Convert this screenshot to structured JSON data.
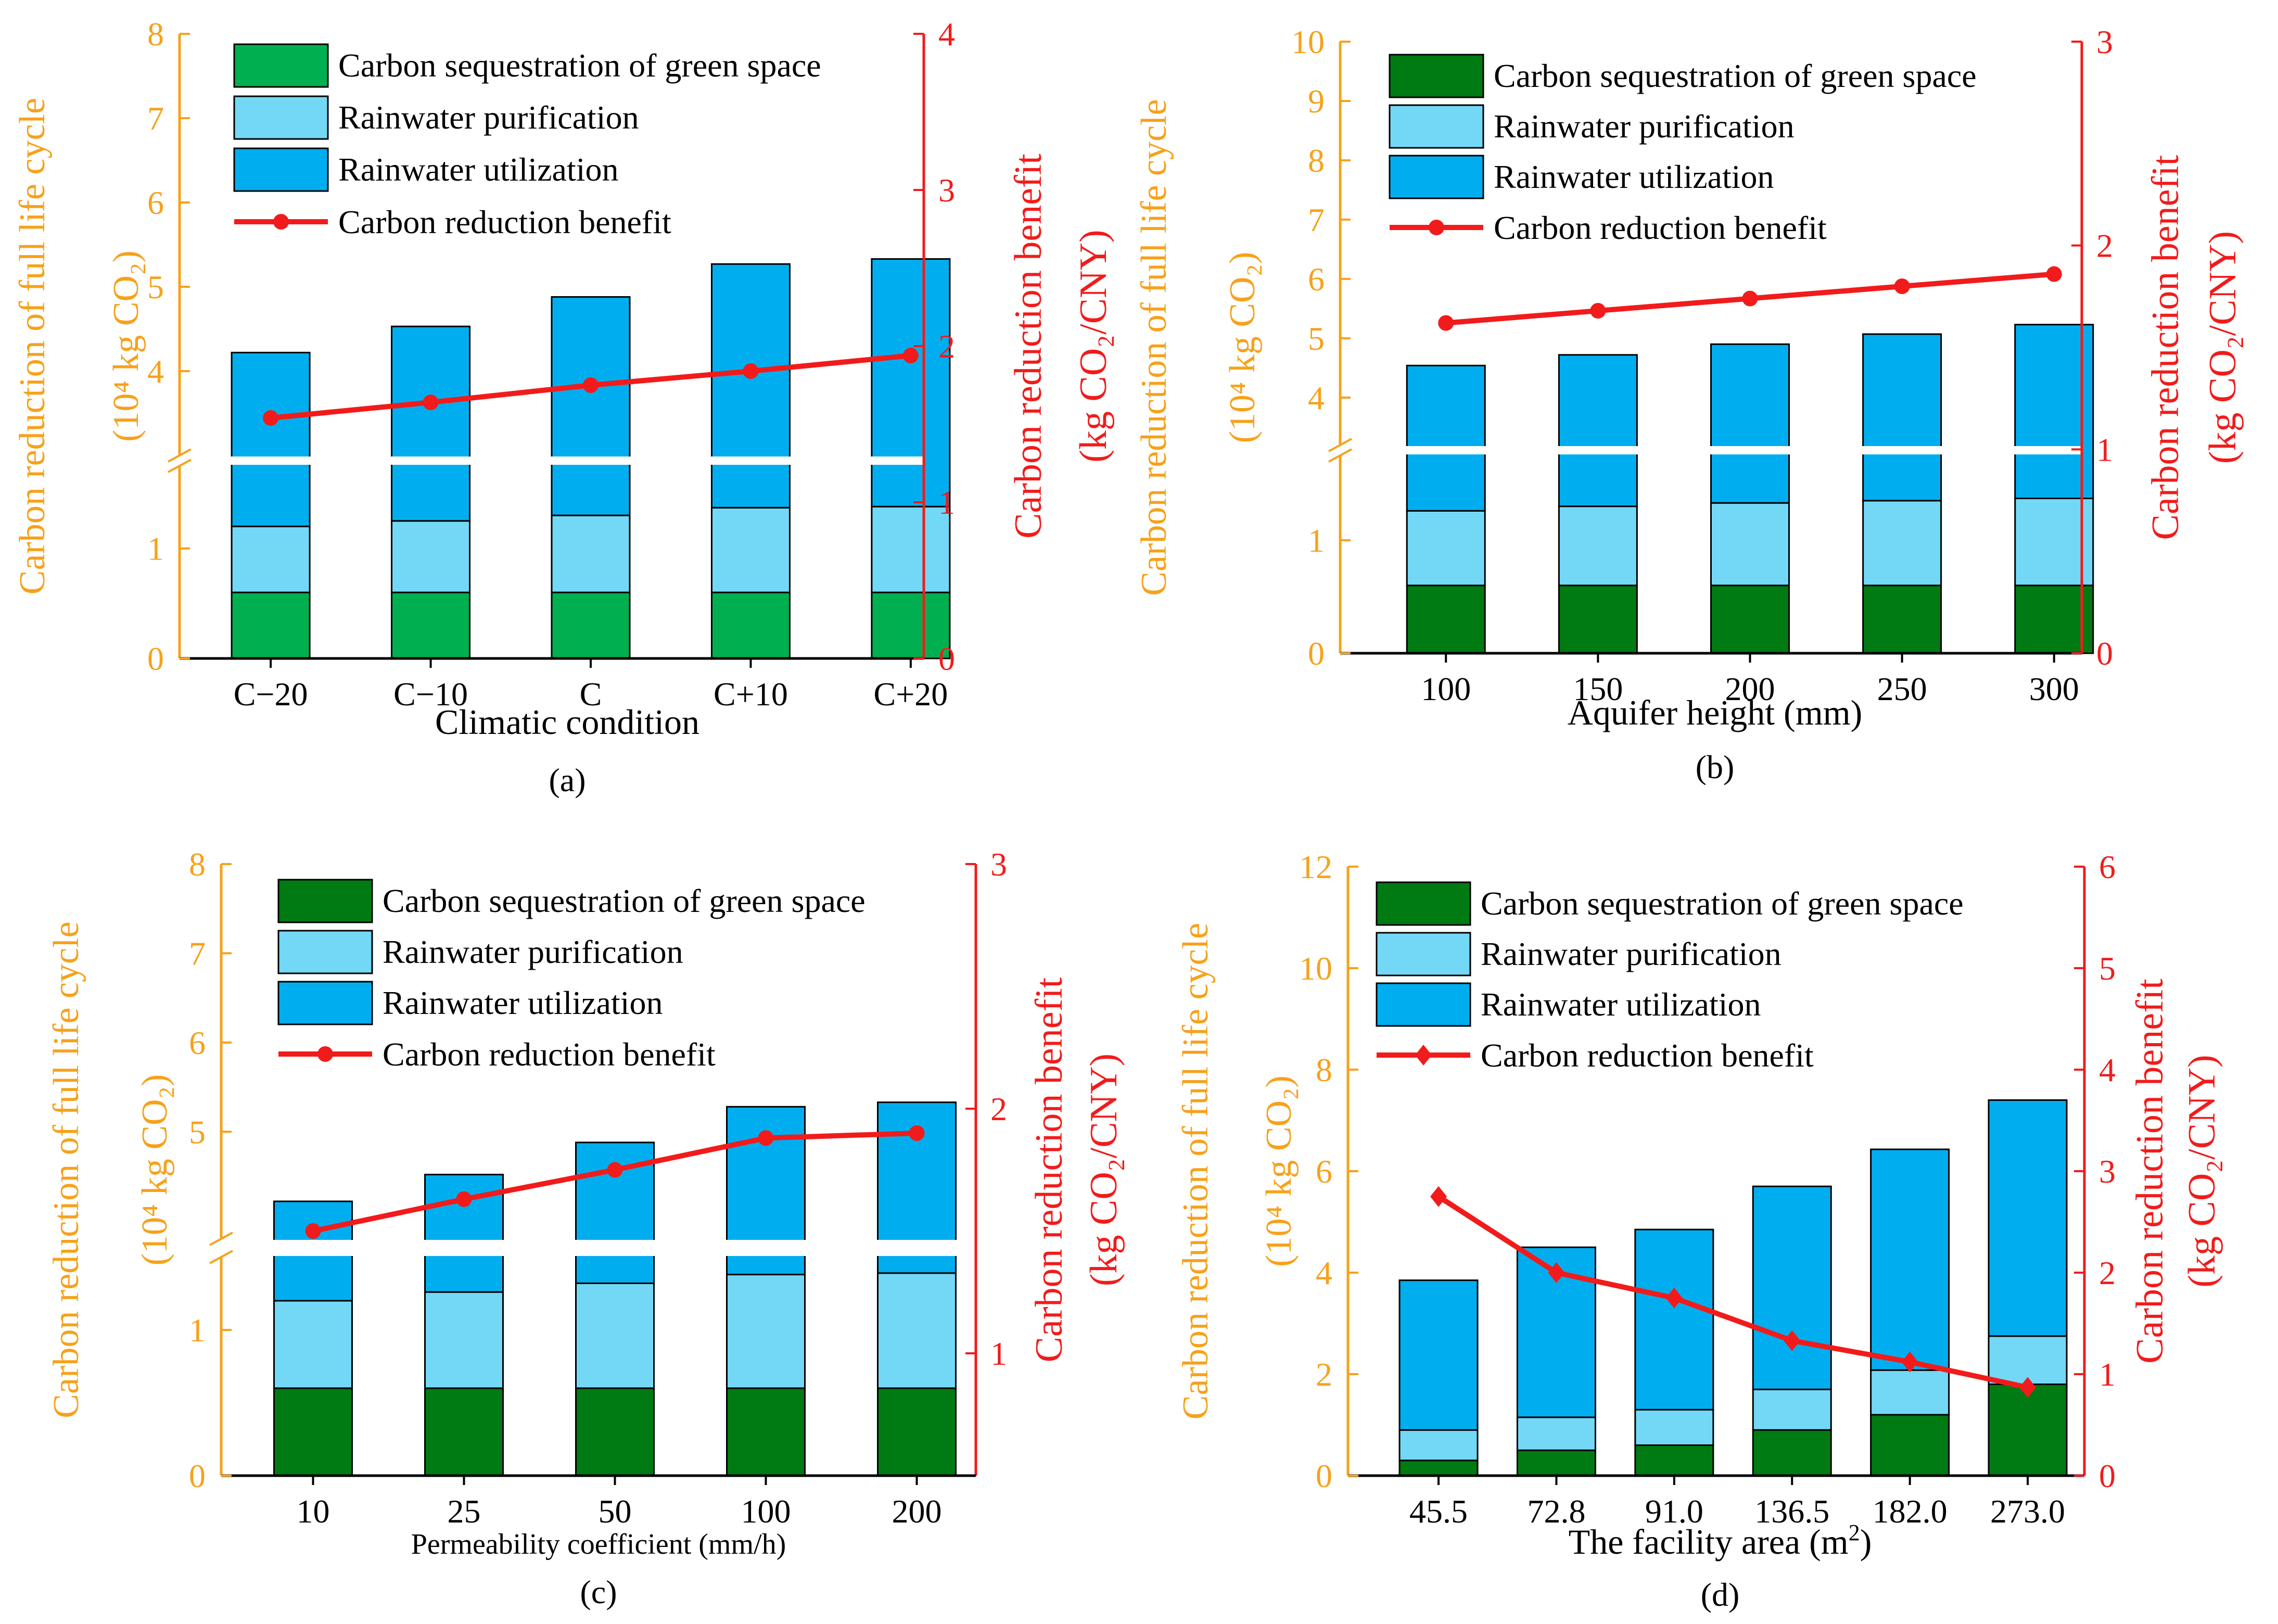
{
  "colors": {
    "green_a": "#00B050",
    "green_dark": "#007A12",
    "purification": "#73D8F5",
    "utilization": "#00AEEF",
    "line": "#F21B1B",
    "left_axis": "#F7A11A",
    "right_axis": "#F21B1B",
    "text": "#000000",
    "break_gap": "#ffffff"
  },
  "chart_data": [
    {
      "id": "a",
      "type": "bar",
      "stacked": true,
      "panel_label": "(a)",
      "xlabel": "Climatic condition",
      "ylabel_left_line1": "Carbon reduction of full life cycle",
      "ylabel_left_line2": "(10⁴ kg CO₂)",
      "ylabel_right_line1": "Carbon reduction benefit",
      "ylabel_right_line2": "(kg CO₂/CNY)",
      "categories": [
        "C−20",
        "C−10",
        "C",
        "C+10",
        "C+20"
      ],
      "series": [
        {
          "name": "Carbon sequestration of green space",
          "values": [
            0.6,
            0.6,
            0.6,
            0.6,
            0.6
          ],
          "color_key": "green_a"
        },
        {
          "name": "Rainwater purification",
          "values": [
            0.6,
            0.65,
            0.7,
            0.77,
            0.78
          ],
          "color_key": "purification"
        },
        {
          "name": "Rainwater utilization",
          "values": [
            3.02,
            3.28,
            3.58,
            3.9,
            3.95
          ],
          "color_key": "utilization"
        }
      ],
      "line_series": {
        "name": "Carbon reduction benefit",
        "values": [
          1.54,
          1.64,
          1.75,
          1.84,
          1.94
        ]
      },
      "left_axis": {
        "lower_ticks": [
          0,
          1
        ],
        "upper_ticks": [
          4,
          5,
          6,
          7,
          8
        ],
        "max": 8,
        "break_range": [
          1.75,
          3.0
        ]
      },
      "right_axis": {
        "min": 0,
        "max": 4,
        "ticks": [
          0,
          1,
          2,
          3,
          4
        ]
      },
      "legend_location": "top-left",
      "legend_marker": "dot",
      "xlabel_style": "normal"
    },
    {
      "id": "b",
      "type": "bar",
      "stacked": true,
      "panel_label": "(b)",
      "xlabel": "Aquifer height (mm)",
      "ylabel_left_line1": "Carbon reduction of full life cycle",
      "ylabel_left_line2": "(10⁴ kg CO₂)",
      "ylabel_right_line1": "Carbon reduction benefit",
      "ylabel_right_line2": "(kg CO₂/CNY)",
      "categories": [
        "100",
        "150",
        "200",
        "250",
        "300"
      ],
      "series": [
        {
          "name": "Carbon sequestration of green space",
          "values": [
            0.6,
            0.6,
            0.6,
            0.6,
            0.6
          ],
          "color_key": "green_dark"
        },
        {
          "name": "Rainwater purification",
          "values": [
            0.66,
            0.7,
            0.73,
            0.75,
            0.77
          ],
          "color_key": "purification"
        },
        {
          "name": "Rainwater utilization",
          "values": [
            3.28,
            3.42,
            3.57,
            3.72,
            3.86
          ],
          "color_key": "utilization"
        }
      ],
      "line_series": {
        "name": "Carbon reduction benefit",
        "values": [
          1.62,
          1.68,
          1.74,
          1.8,
          1.86
        ]
      },
      "left_axis": {
        "lower_ticks": [
          0,
          1
        ],
        "upper_ticks": [
          4,
          5,
          6,
          7,
          8,
          9,
          10
        ],
        "max": 10,
        "break_range": [
          1.75,
          3.2
        ]
      },
      "right_axis": {
        "min": 0,
        "max": 3,
        "ticks": [
          0,
          1,
          2,
          3
        ]
      },
      "legend_location": "top-left",
      "legend_marker": "dot",
      "xlabel_style": "normal"
    },
    {
      "id": "c",
      "type": "bar",
      "stacked": true,
      "panel_label": "(c)",
      "xlabel": "Permeability coefficient (mm/h)",
      "ylabel_left_line1": "Carbon reduction of full life cycle",
      "ylabel_left_line2": "(10⁴ kg CO₂)",
      "ylabel_right_line1": "Carbon reduction benefit",
      "ylabel_right_line2": "(kg CO₂/CNY)",
      "categories": [
        "10",
        "25",
        "50",
        "100",
        "200"
      ],
      "series": [
        {
          "name": "Carbon sequestration of green space",
          "values": [
            0.6,
            0.6,
            0.6,
            0.6,
            0.6
          ],
          "color_key": "green_dark"
        },
        {
          "name": "Rainwater purification",
          "values": [
            0.6,
            0.66,
            0.72,
            0.78,
            0.79
          ],
          "color_key": "purification"
        },
        {
          "name": "Rainwater utilization",
          "values": [
            3.02,
            3.26,
            3.56,
            3.9,
            3.94
          ],
          "color_key": "utilization"
        }
      ],
      "line_series": {
        "name": "Carbon reduction benefit",
        "values": [
          1.5,
          1.63,
          1.75,
          1.88,
          1.9
        ]
      },
      "left_axis": {
        "lower_ticks": [
          0,
          1
        ],
        "upper_ticks": [
          5,
          6,
          7,
          8
        ],
        "max": 8,
        "break_range": [
          1.5,
          3.8
        ]
      },
      "right_axis": {
        "min": 0.5,
        "max": 3,
        "ticks": [
          1,
          2,
          3
        ]
      },
      "legend_location": "top-left",
      "legend_marker": "dot",
      "xlabel_style": "small"
    },
    {
      "id": "d",
      "type": "bar",
      "stacked": true,
      "panel_label": "(d)",
      "xlabel_prefix": "The facility area (m",
      "xlabel_sup": "2",
      "xlabel_suffix": ")",
      "ylabel_left_line1": "Carbon reduction of full life cycle",
      "ylabel_left_line2": "(10⁴ kg CO₂)",
      "ylabel_right_line1": "Carbon reduction benefit",
      "ylabel_right_line2": "(kg CO₂/CNY)",
      "categories": [
        "45.5",
        "72.8",
        "91.0",
        "136.5",
        "182.0",
        "273.0"
      ],
      "series": [
        {
          "name": "Carbon sequestration of green space",
          "values": [
            0.3,
            0.5,
            0.6,
            0.9,
            1.2,
            1.8
          ],
          "color_key": "green_dark"
        },
        {
          "name": "Rainwater purification",
          "values": [
            0.6,
            0.65,
            0.7,
            0.8,
            0.88,
            0.95
          ],
          "color_key": "purification"
        },
        {
          "name": "Rainwater utilization",
          "values": [
            2.95,
            3.35,
            3.55,
            4.0,
            4.35,
            4.65
          ],
          "color_key": "utilization"
        }
      ],
      "line_series": {
        "name": "Carbon reduction benefit",
        "values": [
          2.75,
          2.0,
          1.75,
          1.33,
          1.12,
          0.87
        ]
      },
      "left_axis": {
        "ticks": [
          0,
          2,
          4,
          6,
          8,
          10,
          12
        ],
        "max": 12
      },
      "right_axis": {
        "min": 0,
        "max": 6,
        "ticks": [
          0,
          1,
          2,
          3,
          4,
          5,
          6
        ]
      },
      "legend_location": "top-left",
      "legend_marker": "diamond",
      "xlabel_style": "normal"
    }
  ]
}
